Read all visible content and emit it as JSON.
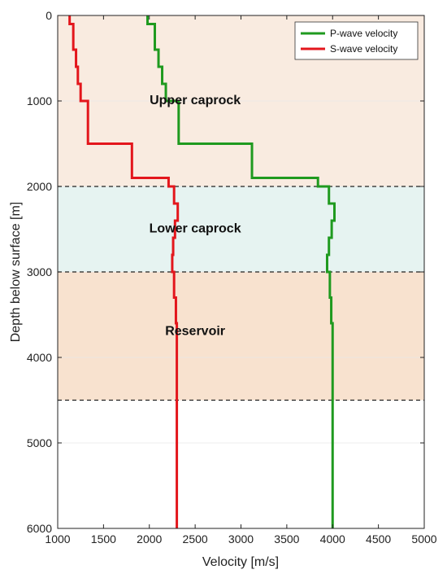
{
  "chart_data": {
    "type": "line",
    "xlabel": "Velocity [m/s]",
    "ylabel": "Depth below surface [m]",
    "xlim": [
      1000,
      5000
    ],
    "ylim": [
      0,
      6000
    ],
    "y_inverted": true,
    "xticks": [
      1000,
      1500,
      2000,
      2500,
      3000,
      3500,
      4000,
      4500,
      5000
    ],
    "yticks": [
      0,
      1000,
      2000,
      3000,
      4000,
      5000,
      6000
    ],
    "legend_position": "top-right",
    "zones": [
      {
        "label": "Upper caprock",
        "top": 0,
        "bottom": 2000,
        "color": "#f9ebe0",
        "label_x": 2500,
        "label_y": 1000
      },
      {
        "label": "Lower caprock",
        "top": 2000,
        "bottom": 3000,
        "color": "#e6f3f1",
        "label_x": 2500,
        "label_y": 2500
      },
      {
        "label": "Reservoir",
        "top": 3000,
        "bottom": 4500,
        "color": "#f8e2cf",
        "label_x": 2500,
        "label_y": 3700
      }
    ],
    "boundaries": [
      2000,
      3000,
      4500
    ],
    "series": [
      {
        "name": "P-wave velocity",
        "color": "#1f9a1f",
        "steps": [
          {
            "top": 0,
            "bottom": 100,
            "v": 1980
          },
          {
            "top": 100,
            "bottom": 400,
            "v": 2060
          },
          {
            "top": 400,
            "bottom": 600,
            "v": 2100
          },
          {
            "top": 600,
            "bottom": 800,
            "v": 2140
          },
          {
            "top": 800,
            "bottom": 1000,
            "v": 2180
          },
          {
            "top": 1000,
            "bottom": 1500,
            "v": 2320
          },
          {
            "top": 1500,
            "bottom": 1900,
            "v": 3120
          },
          {
            "top": 1900,
            "bottom": 2000,
            "v": 3840
          },
          {
            "top": 2000,
            "bottom": 2200,
            "v": 3960
          },
          {
            "top": 2200,
            "bottom": 2400,
            "v": 4020
          },
          {
            "top": 2400,
            "bottom": 2600,
            "v": 3990
          },
          {
            "top": 2600,
            "bottom": 2800,
            "v": 3960
          },
          {
            "top": 2800,
            "bottom": 3000,
            "v": 3940
          },
          {
            "top": 3000,
            "bottom": 3300,
            "v": 3970
          },
          {
            "top": 3300,
            "bottom": 3600,
            "v": 3985
          },
          {
            "top": 3600,
            "bottom": 6000,
            "v": 4000
          }
        ]
      },
      {
        "name": "S-wave velocity",
        "color": "#e3161c",
        "steps": [
          {
            "top": 0,
            "bottom": 100,
            "v": 1130
          },
          {
            "top": 100,
            "bottom": 400,
            "v": 1170
          },
          {
            "top": 400,
            "bottom": 600,
            "v": 1200
          },
          {
            "top": 600,
            "bottom": 800,
            "v": 1220
          },
          {
            "top": 800,
            "bottom": 1000,
            "v": 1250
          },
          {
            "top": 1000,
            "bottom": 1500,
            "v": 1330
          },
          {
            "top": 1500,
            "bottom": 1900,
            "v": 1810
          },
          {
            "top": 1900,
            "bottom": 2000,
            "v": 2210
          },
          {
            "top": 2000,
            "bottom": 2200,
            "v": 2270
          },
          {
            "top": 2200,
            "bottom": 2400,
            "v": 2310
          },
          {
            "top": 2400,
            "bottom": 2600,
            "v": 2280
          },
          {
            "top": 2600,
            "bottom": 2800,
            "v": 2260
          },
          {
            "top": 2800,
            "bottom": 3000,
            "v": 2250
          },
          {
            "top": 3000,
            "bottom": 3300,
            "v": 2270
          },
          {
            "top": 3300,
            "bottom": 3600,
            "v": 2290
          },
          {
            "top": 3600,
            "bottom": 6000,
            "v": 2300
          }
        ]
      }
    ]
  }
}
